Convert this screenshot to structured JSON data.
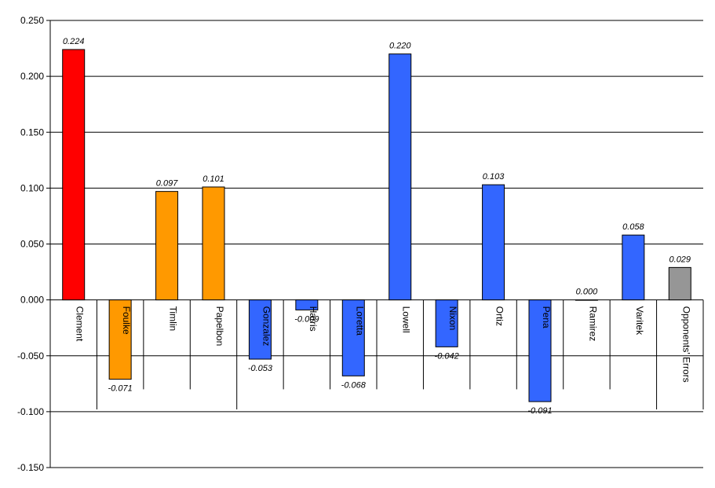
{
  "chart_data": {
    "type": "bar",
    "title": "",
    "xlabel": "",
    "ylabel": "",
    "ylim": [
      -0.15,
      0.25
    ],
    "yticks": [
      "0.250",
      "0.200",
      "0.150",
      "0.100",
      "0.050",
      "0.000",
      "-0.050",
      "-0.100",
      "-0.150"
    ],
    "ytick_values": [
      0.25,
      0.2,
      0.15,
      0.1,
      0.05,
      0,
      -0.05,
      -0.1,
      -0.15
    ],
    "grid": true,
    "legend": "none",
    "categories": [
      "Clement",
      "Foulke",
      "Timlin",
      "Papelbon",
      "Gonzalez",
      "Harris",
      "Loretta",
      "Lowell",
      "Nixon",
      "Ortiz",
      "Pena",
      "Ramirez",
      "Varitek",
      "Opponents' Errors"
    ],
    "values": [
      0.224,
      -0.071,
      0.097,
      0.101,
      -0.053,
      -0.009,
      -0.068,
      0.22,
      -0.042,
      0.103,
      -0.091,
      0.0,
      0.058,
      0.029
    ],
    "value_labels": [
      "0.224",
      "-0.071",
      "0.097",
      "0.101",
      "-0.053",
      "-0.009",
      "-0.068",
      "0.220",
      "-0.042",
      "0.103",
      "-0.091",
      "0.000",
      "0.058",
      "0.029"
    ],
    "bar_colors": [
      "#ff0000",
      "#ff9900",
      "#ff9900",
      "#ff9900",
      "#3366ff",
      "#3366ff",
      "#3366ff",
      "#3366ff",
      "#3366ff",
      "#3366ff",
      "#3366ff",
      "#3366ff",
      "#3366ff",
      "#969696"
    ],
    "group_dividers_after": [
      0,
      3,
      12
    ]
  }
}
